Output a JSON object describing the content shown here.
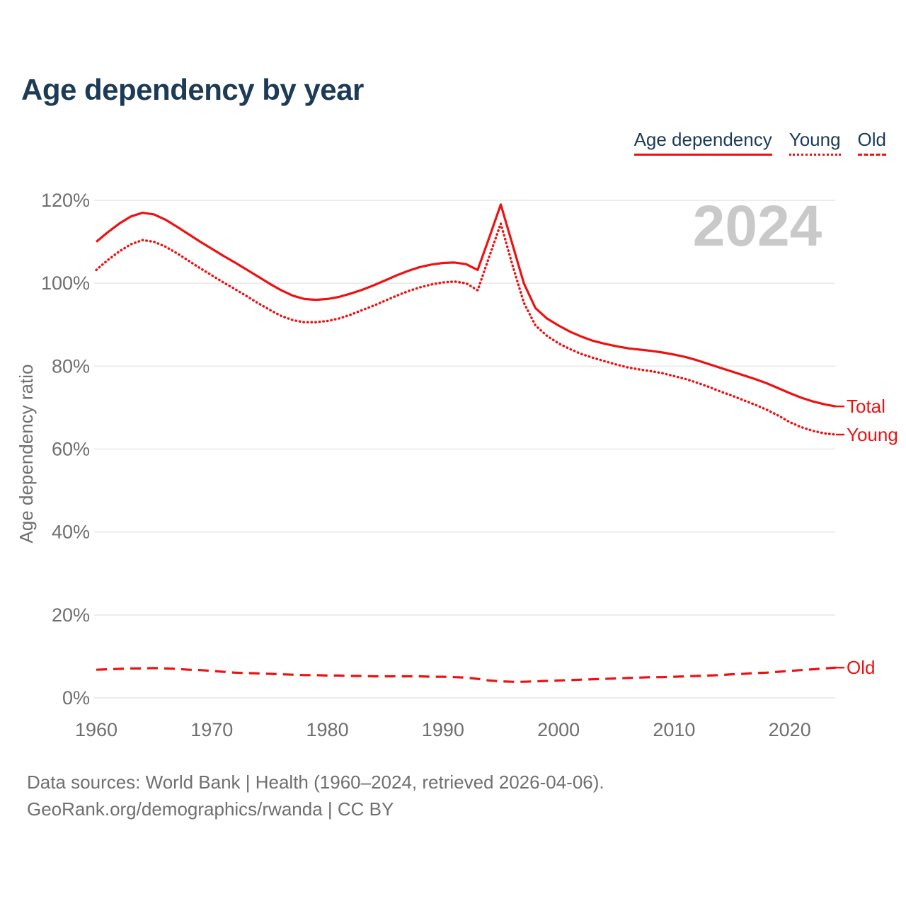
{
  "header": {
    "title": "Age dependency by year"
  },
  "legend": {
    "items": [
      {
        "label": "Age dependency",
        "style": "solid"
      },
      {
        "label": "Young",
        "style": "dotted"
      },
      {
        "label": "Old",
        "style": "dashed"
      }
    ]
  },
  "watermark": "2024",
  "footer": {
    "line1": "Data sources: World Bank | Health (1960–2024, retrieved 2026-04-06).",
    "line2": "GeoRank.org/demographics/rwanda | CC BY"
  },
  "colors": {
    "accent_red": "#ee1111",
    "title_navy": "#1d3a57",
    "axis_gray": "#6f6f6f",
    "grid_gray": "#ececec",
    "watermark_gray": "#c9c9c9"
  },
  "chart_data": {
    "type": "line",
    "title": "Age dependency by year",
    "xlabel": "",
    "ylabel": "Age dependency ratio",
    "ylim": [
      0,
      120
    ],
    "yticks": [
      0,
      20,
      40,
      60,
      80,
      100,
      120
    ],
    "ytick_suffix": "%",
    "xticks": [
      1960,
      1970,
      1980,
      1990,
      2000,
      2010,
      2020
    ],
    "grid": "horizontal",
    "legend_position": "top-right",
    "x": {
      "start": 1960,
      "end": 2024,
      "step": 1
    },
    "series": [
      {
        "name": "Total",
        "style": "solid",
        "end_label": "Total",
        "values": [
          110.0,
          112.3,
          114.4,
          116.1,
          117.0,
          116.6,
          115.3,
          113.6,
          111.8,
          110.0,
          108.3,
          106.6,
          105.0,
          103.3,
          101.6,
          99.9,
          98.3,
          97.0,
          96.2,
          96.0,
          96.2,
          96.7,
          97.5,
          98.4,
          99.5,
          100.7,
          101.9,
          103.0,
          103.9,
          104.5,
          104.9,
          105.0,
          104.6,
          103.2,
          111.0,
          119.0,
          109.5,
          100.0,
          94.0,
          91.5,
          89.8,
          88.3,
          87.1,
          86.1,
          85.4,
          84.8,
          84.3,
          84.0,
          83.7,
          83.3,
          82.8,
          82.2,
          81.4,
          80.5,
          79.6,
          78.7,
          77.8,
          76.9,
          75.9,
          74.7,
          73.5,
          72.4,
          71.5,
          70.8,
          70.3
        ]
      },
      {
        "name": "Young",
        "style": "dotted",
        "end_label": "Young",
        "values": [
          103.2,
          105.6,
          107.7,
          109.4,
          110.4,
          110.0,
          108.8,
          107.2,
          105.4,
          103.6,
          101.9,
          100.2,
          98.6,
          96.9,
          95.2,
          93.6,
          92.1,
          91.1,
          90.6,
          90.6,
          90.9,
          91.5,
          92.4,
          93.5,
          94.6,
          95.8,
          97.0,
          98.1,
          99.0,
          99.7,
          100.2,
          100.4,
          100.0,
          98.3,
          106.4,
          114.4,
          104.5,
          95.3,
          89.8,
          87.3,
          85.5,
          84.1,
          82.9,
          82.0,
          81.2,
          80.4,
          79.7,
          79.2,
          78.8,
          78.3,
          77.6,
          76.9,
          76.0,
          75.0,
          73.9,
          72.9,
          71.8,
          70.7,
          69.5,
          68.1,
          66.5,
          65.3,
          64.4,
          63.8,
          63.5
        ]
      },
      {
        "name": "Old",
        "style": "dashed",
        "end_label": "Old",
        "values": [
          6.8,
          6.9,
          7.0,
          7.1,
          7.1,
          7.2,
          7.1,
          7.0,
          6.8,
          6.7,
          6.5,
          6.3,
          6.1,
          6.0,
          5.9,
          5.8,
          5.7,
          5.6,
          5.5,
          5.5,
          5.4,
          5.4,
          5.3,
          5.3,
          5.2,
          5.2,
          5.2,
          5.2,
          5.2,
          5.1,
          5.1,
          5.0,
          4.9,
          4.6,
          4.2,
          4.0,
          3.9,
          3.9,
          4.0,
          4.1,
          4.2,
          4.3,
          4.4,
          4.5,
          4.6,
          4.7,
          4.8,
          4.9,
          5.0,
          5.0,
          5.1,
          5.2,
          5.3,
          5.4,
          5.5,
          5.7,
          5.8,
          6.0,
          6.1,
          6.3,
          6.5,
          6.7,
          6.9,
          7.1,
          7.3
        ]
      }
    ]
  }
}
